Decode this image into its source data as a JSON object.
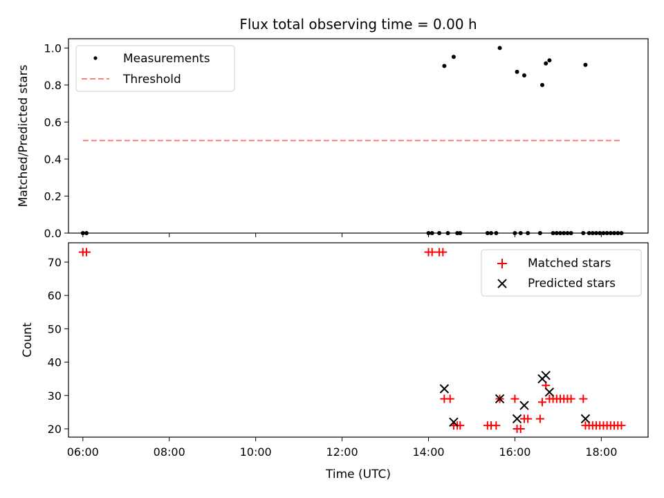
{
  "title": "Flux total observing time = 0.00 h",
  "colors": {
    "axis": "#000000",
    "threshold": "#ff7f7f",
    "matched": "#ff0000",
    "predicted": "#000000",
    "measurement": "#000000"
  },
  "chart_data": [
    {
      "type": "scatter",
      "title": "Flux total observing time = 0.00 h",
      "xlabel": "",
      "ylabel": "Matched/Predicted stars",
      "xlim": [
        "05:40",
        "19:05"
      ],
      "ylim": [
        0.0,
        1.05
      ],
      "xticks": [
        "06:00",
        "08:00",
        "10:00",
        "12:00",
        "14:00",
        "16:00",
        "18:00"
      ],
      "yticks": [
        "0.0",
        "0.2",
        "0.4",
        "0.6",
        "0.8",
        "1.0"
      ],
      "legend_position": "top-left",
      "series": [
        {
          "name": "Measurements",
          "marker": "dot",
          "points": [
            [
              "06:00",
              0.0
            ],
            [
              "06:05",
              0.0
            ],
            [
              "14:00",
              0.0
            ],
            [
              "14:05",
              0.0
            ],
            [
              "14:15",
              0.0
            ],
            [
              "14:22",
              0.903
            ],
            [
              "14:27",
              0.0
            ],
            [
              "14:35",
              0.952
            ],
            [
              "14:40",
              0.0
            ],
            [
              "14:44",
              0.0
            ],
            [
              "15:22",
              0.0
            ],
            [
              "15:27",
              0.0
            ],
            [
              "15:34",
              0.0
            ],
            [
              "15:39",
              1.0
            ],
            [
              "16:00",
              0.0
            ],
            [
              "16:03",
              0.871
            ],
            [
              "16:08",
              0.0
            ],
            [
              "16:13",
              0.852
            ],
            [
              "16:18",
              0.0
            ],
            [
              "16:35",
              0.0
            ],
            [
              "16:38",
              0.8
            ],
            [
              "16:43",
              0.917
            ],
            [
              "16:48",
              0.933
            ],
            [
              "16:53",
              0.0
            ],
            [
              "16:58",
              0.0
            ],
            [
              "17:03",
              0.0
            ],
            [
              "17:08",
              0.0
            ],
            [
              "17:13",
              0.0
            ],
            [
              "17:18",
              0.0
            ],
            [
              "17:35",
              0.0
            ],
            [
              "17:38",
              0.909
            ],
            [
              "17:43",
              0.0
            ],
            [
              "17:48",
              0.0
            ],
            [
              "17:53",
              0.0
            ],
            [
              "17:58",
              0.0
            ],
            [
              "18:03",
              0.0
            ],
            [
              "18:08",
              0.0
            ],
            [
              "18:13",
              0.0
            ],
            [
              "18:18",
              0.0
            ],
            [
              "18:23",
              0.0
            ],
            [
              "18:28",
              0.0
            ]
          ]
        },
        {
          "name": "Threshold",
          "style": "dashed",
          "points": [
            [
              "06:00",
              0.5
            ],
            [
              "18:28",
              0.5
            ]
          ]
        }
      ]
    },
    {
      "type": "scatter",
      "xlabel": "Time (UTC)",
      "ylabel": "Count",
      "xlim": [
        "05:40",
        "19:05"
      ],
      "ylim": [
        17.5,
        75.8
      ],
      "xticks": [
        "06:00",
        "08:00",
        "10:00",
        "12:00",
        "14:00",
        "16:00",
        "18:00"
      ],
      "yticks": [
        "20",
        "30",
        "40",
        "50",
        "60",
        "70"
      ],
      "legend_position": "top-right",
      "series": [
        {
          "name": "Matched stars",
          "marker": "plus",
          "points": [
            [
              "06:00",
              73
            ],
            [
              "06:05",
              73
            ],
            [
              "14:00",
              73
            ],
            [
              "14:05",
              73
            ],
            [
              "14:15",
              73
            ],
            [
              "14:20",
              73
            ],
            [
              "14:22",
              29
            ],
            [
              "14:30",
              29
            ],
            [
              "14:35",
              21
            ],
            [
              "14:40",
              21
            ],
            [
              "14:44",
              21
            ],
            [
              "15:22",
              21
            ],
            [
              "15:27",
              21
            ],
            [
              "15:34",
              21
            ],
            [
              "15:39",
              29
            ],
            [
              "16:00",
              29
            ],
            [
              "16:03",
              20
            ],
            [
              "16:08",
              20
            ],
            [
              "16:13",
              23
            ],
            [
              "16:18",
              23
            ],
            [
              "16:35",
              23
            ],
            [
              "16:38",
              28
            ],
            [
              "16:43",
              33
            ],
            [
              "16:48",
              29
            ],
            [
              "16:53",
              29
            ],
            [
              "16:58",
              29
            ],
            [
              "17:03",
              29
            ],
            [
              "17:08",
              29
            ],
            [
              "17:13",
              29
            ],
            [
              "17:18",
              29
            ],
            [
              "17:35",
              29
            ],
            [
              "17:38",
              21
            ],
            [
              "17:43",
              21
            ],
            [
              "17:48",
              21
            ],
            [
              "17:53",
              21
            ],
            [
              "17:58",
              21
            ],
            [
              "18:03",
              21
            ],
            [
              "18:08",
              21
            ],
            [
              "18:13",
              21
            ],
            [
              "18:18",
              21
            ],
            [
              "18:23",
              21
            ],
            [
              "18:28",
              21
            ]
          ]
        },
        {
          "name": "Predicted stars",
          "marker": "x",
          "points": [
            [
              "14:22",
              32
            ],
            [
              "14:35",
              22
            ],
            [
              "15:39",
              29
            ],
            [
              "16:03",
              23
            ],
            [
              "16:13",
              27
            ],
            [
              "16:38",
              35
            ],
            [
              "16:43",
              36
            ],
            [
              "16:48",
              31
            ],
            [
              "17:38",
              23
            ]
          ]
        }
      ]
    }
  ]
}
